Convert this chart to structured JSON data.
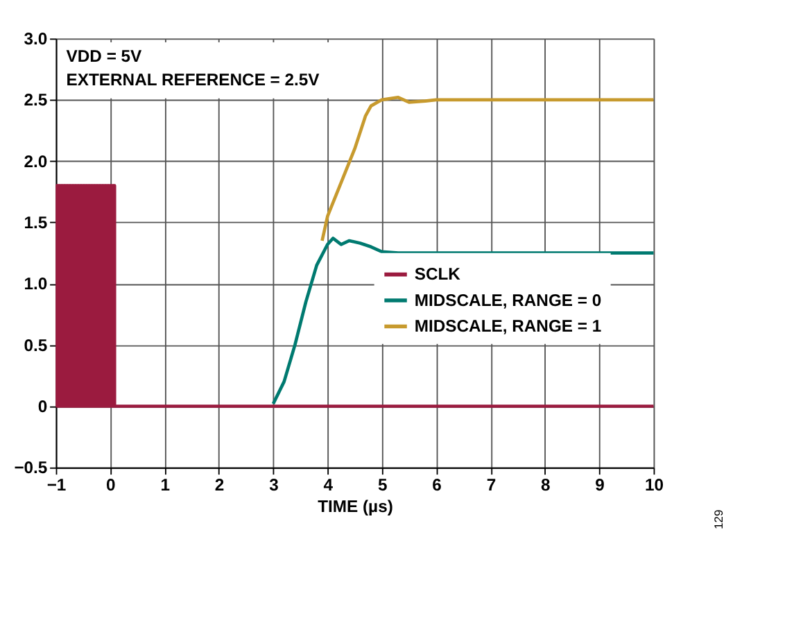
{
  "chart_data": {
    "type": "line",
    "xlabel": "TIME (µs)",
    "xlim": [
      -1,
      10
    ],
    "xticks": [
      -1,
      0,
      1,
      2,
      3,
      4,
      5,
      6,
      7,
      8,
      9,
      10
    ],
    "ylim": [
      -0.5,
      3.0
    ],
    "yticks": [
      {
        "value": -0.5,
        "label": "−0.5"
      },
      {
        "value": 0,
        "label": "0"
      },
      0.5,
      {
        "value": 1,
        "label": "1.0"
      },
      1.5,
      {
        "value": 2,
        "label": "2.0"
      },
      2.5,
      {
        "value": 3,
        "label": "3.0"
      }
    ],
    "grid": true,
    "legend": "right",
    "line_style": "solid",
    "marker": "none",
    "annotations": [
      "VDD = 5V",
      "EXTERNAL REFERENCE = 2.5V",
      "129"
    ],
    "series": [
      {
        "name": "SCLK",
        "type": "step",
        "color": "#9b1b3f",
        "x": [
          -1,
          -0.975,
          -0.95,
          -0.925,
          -0.9,
          -0.875,
          -0.85,
          -0.825,
          -0.8,
          -0.775,
          -0.75,
          -0.725,
          -0.7,
          -0.675,
          -0.65,
          -0.625,
          -0.6,
          -0.575,
          -0.55,
          -0.525,
          -0.5,
          -0.475,
          -0.45,
          -0.425,
          -0.4,
          -0.375,
          -0.35,
          -0.325,
          -0.3,
          -0.275,
          -0.25,
          -0.225,
          -0.2,
          -0.175,
          -0.15,
          -0.125,
          -0.1,
          -0.075,
          -0.05,
          -0.025,
          0,
          0.025,
          0.05,
          0.08,
          10
        ],
        "values": [
          1.8,
          0,
          1.8,
          0,
          1.8,
          0,
          1.8,
          0,
          1.8,
          0,
          1.8,
          0,
          1.8,
          0,
          1.8,
          0,
          1.8,
          0,
          1.8,
          0,
          1.8,
          0,
          1.8,
          0,
          1.8,
          0,
          1.8,
          0,
          1.8,
          0,
          1.8,
          0,
          1.8,
          0,
          1.8,
          0,
          1.8,
          0,
          1.8,
          0,
          1.8,
          0,
          1.8,
          0,
          0
        ]
      },
      {
        "name": "MIDSCALE, RANGE = 0",
        "type": "line",
        "color": "#007a70",
        "x": [
          3.0,
          3.2,
          3.4,
          3.6,
          3.8,
          4.0,
          4.1,
          4.25,
          4.4,
          4.6,
          4.8,
          5.0,
          5.3,
          10
        ],
        "values": [
          0.02,
          0.2,
          0.5,
          0.85,
          1.15,
          1.32,
          1.37,
          1.32,
          1.35,
          1.33,
          1.3,
          1.26,
          1.25,
          1.25
        ]
      },
      {
        "name": "MIDSCALE, RANGE = 1",
        "type": "line",
        "color": "#c79a2e",
        "x": [
          3.9,
          4.0,
          4.5,
          4.7,
          4.8,
          5.0,
          5.3,
          5.5,
          5.8,
          6,
          10
        ],
        "values": [
          1.35,
          1.55,
          2.1,
          2.37,
          2.45,
          2.5,
          2.52,
          2.48,
          2.49,
          2.5,
          2.5
        ]
      }
    ]
  }
}
